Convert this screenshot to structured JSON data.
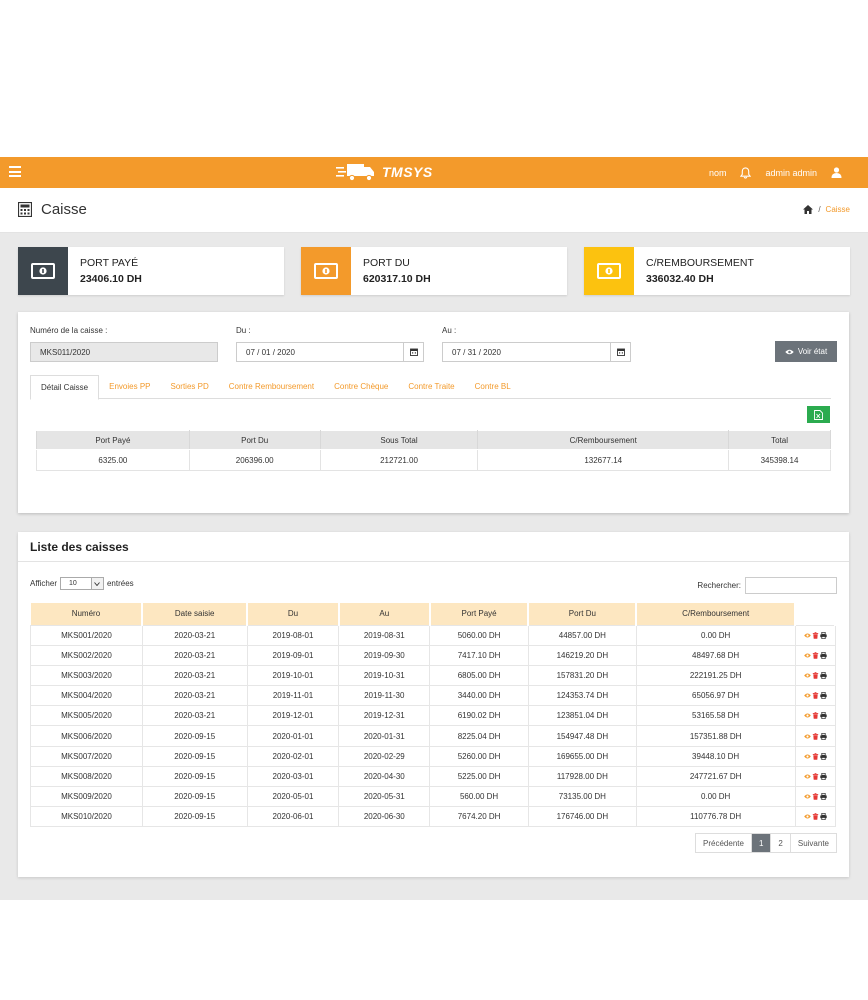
{
  "topbar": {
    "brand": "TMSYS",
    "nom": "nom",
    "user": "admin admin"
  },
  "page": {
    "title": "Caisse",
    "breadcrumb_current": "Caisse"
  },
  "cards": [
    {
      "label": "PORT PAYÉ",
      "value": "23406.10 DH",
      "color": "#3d464d"
    },
    {
      "label": "PORT DU",
      "value": "620317.10 DH",
      "color": "#f39a2b"
    },
    {
      "label": "C/REMBOURSEMENT",
      "value": "336032.40 DH",
      "color": "#fcc20f"
    }
  ],
  "form": {
    "numero_label": "Numéro de la caisse :",
    "numero_value": "MKS011/2020",
    "du_label": "Du :",
    "du_value": "07 / 01 / 2020",
    "au_label": "Au :",
    "au_value": "07 / 31 / 2020",
    "voir_label": "Voir état"
  },
  "tabs": [
    "Détail Caisse",
    "Envoies PP",
    "Sorties PD",
    "Contre Remboursement",
    "Contre Chèque",
    "Contre Traite",
    "Contre BL"
  ],
  "detail": {
    "headers": [
      "Port Payé",
      "Port Du",
      "Sous Total",
      "C/Remboursement",
      "Total"
    ],
    "row": [
      "6325.00",
      "206396.00",
      "212721.00",
      "132677.14",
      "345398.14"
    ]
  },
  "liste": {
    "title": "Liste des caisses",
    "afficher": "Afficher",
    "entries_value": "10",
    "entrees": "entrées",
    "rechercher": "Rechercher:",
    "headers": [
      "Numéro",
      "Date saisie",
      "Du",
      "Au",
      "Port Payé",
      "Port Du",
      "C/Remboursement"
    ],
    "rows": [
      [
        "MKS001/2020",
        "2020-03-21",
        "2019-08-01",
        "2019-08-31",
        "5060.00 DH",
        "44857.00 DH",
        "0.00 DH"
      ],
      [
        "MKS002/2020",
        "2020-03-21",
        "2019-09-01",
        "2019-09-30",
        "7417.10 DH",
        "146219.20 DH",
        "48497.68 DH"
      ],
      [
        "MKS003/2020",
        "2020-03-21",
        "2019-10-01",
        "2019-10-31",
        "6805.00 DH",
        "157831.20 DH",
        "222191.25 DH"
      ],
      [
        "MKS004/2020",
        "2020-03-21",
        "2019-11-01",
        "2019-11-30",
        "3440.00 DH",
        "124353.74 DH",
        "65056.97 DH"
      ],
      [
        "MKS005/2020",
        "2020-03-21",
        "2019-12-01",
        "2019-12-31",
        "6190.02 DH",
        "123851.04 DH",
        "53165.58 DH"
      ],
      [
        "MKS006/2020",
        "2020-09-15",
        "2020-01-01",
        "2020-01-31",
        "8225.04 DH",
        "154947.48 DH",
        "157351.88 DH"
      ],
      [
        "MKS007/2020",
        "2020-09-15",
        "2020-02-01",
        "2020-02-29",
        "5260.00 DH",
        "169655.00 DH",
        "39448.10 DH"
      ],
      [
        "MKS008/2020",
        "2020-09-15",
        "2020-03-01",
        "2020-04-30",
        "5225.00 DH",
        "117928.00 DH",
        "247721.67 DH"
      ],
      [
        "MKS009/2020",
        "2020-09-15",
        "2020-05-01",
        "2020-05-31",
        "560.00 DH",
        "73135.00 DH",
        "0.00 DH"
      ],
      [
        "MKS010/2020",
        "2020-09-15",
        "2020-06-01",
        "2020-06-30",
        "7674.20 DH",
        "176746.00 DH",
        "110776.78 DH"
      ]
    ],
    "pager": {
      "prev": "Précédente",
      "pages": [
        "1",
        "2"
      ],
      "next": "Suivante"
    }
  }
}
